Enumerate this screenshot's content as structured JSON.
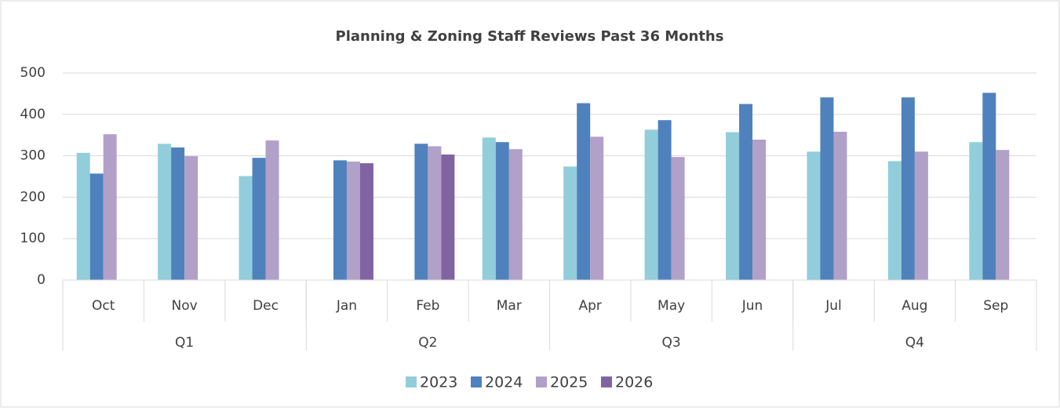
{
  "chart_data": {
    "type": "bar",
    "title": "Planning & Zoning Staff Reviews Past 36 Months",
    "category_groups": [
      {
        "label": "Q1",
        "categories": [
          "Oct",
          "Nov",
          "Dec"
        ]
      },
      {
        "label": "Q2",
        "categories": [
          "Jan",
          "Feb",
          "Mar"
        ]
      },
      {
        "label": "Q3",
        "categories": [
          "Apr",
          "May",
          "Jun"
        ]
      },
      {
        "label": "Q4",
        "categories": [
          "Jul",
          "Aug",
          "Sep"
        ]
      }
    ],
    "series": [
      {
        "name": "2023",
        "color": "#92cddc",
        "values": [
          307,
          329,
          251,
          null,
          null,
          344,
          274,
          363,
          357,
          310,
          287,
          333
        ]
      },
      {
        "name": "2024",
        "color": "#4f81bd",
        "values": [
          257,
          320,
          295,
          289,
          329,
          333,
          427,
          386,
          425,
          441,
          441,
          452
        ]
      },
      {
        "name": "2025",
        "color": "#b1a0c7",
        "values": [
          352,
          299,
          337,
          286,
          323,
          316,
          346,
          297,
          339,
          358,
          310,
          314
        ]
      },
      {
        "name": "2026",
        "color": "#8064a2",
        "values": [
          null,
          null,
          null,
          282,
          303,
          null,
          null,
          null,
          null,
          null,
          null,
          null
        ]
      }
    ],
    "ylim": [
      0,
      500
    ],
    "yticks": [
      0,
      100,
      200,
      300,
      400,
      500
    ],
    "grid": true,
    "legend": "bottom"
  }
}
